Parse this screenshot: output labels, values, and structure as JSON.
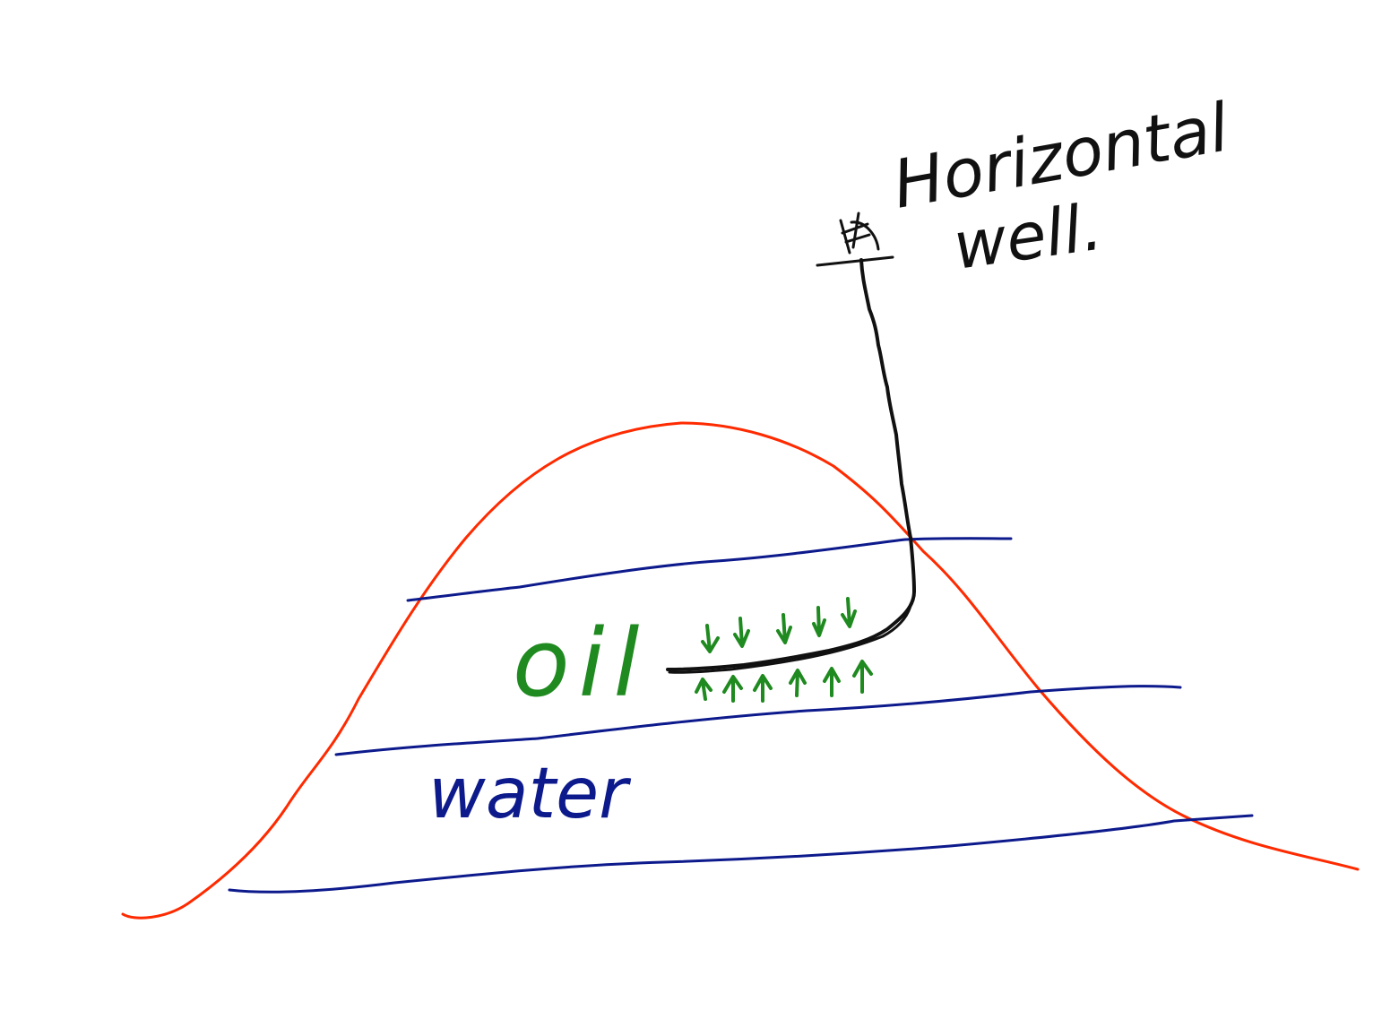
{
  "labels": {
    "well_title_line1": "Horizontal",
    "well_title_line2": "well.",
    "oil": "oil",
    "water": "water"
  },
  "colors": {
    "background": "#ffffff",
    "anticline": "#ff2a00",
    "layers": "#0d1a8c",
    "well": "#111111",
    "oil_flow": "#1f8a1f"
  },
  "icons": {
    "wellhead": "wellhead-symbol",
    "flow_down": "arrow-down",
    "flow_up": "arrow-up"
  }
}
